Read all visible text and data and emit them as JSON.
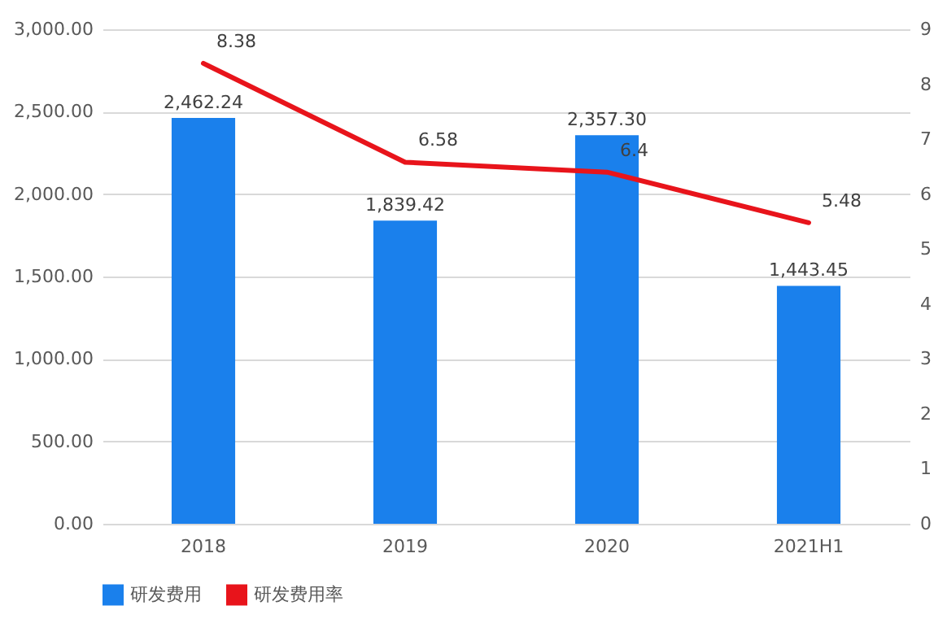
{
  "chart_data": {
    "type": "bar",
    "categories": [
      "2018",
      "2019",
      "2020",
      "2021H1"
    ],
    "series": [
      {
        "name": "研发费用",
        "color": "#1a80ec",
        "values": [
          2462.24,
          1839.42,
          2357.3,
          1443.45
        ],
        "value_labels": [
          "2,462.24",
          "1,839.42",
          "2,357.30",
          "1,443.45"
        ]
      },
      {
        "name": "研发费用率",
        "type": "line",
        "axis": "y2",
        "color": "#e8141b",
        "values": [
          8.38,
          6.58,
          6.4,
          5.48
        ],
        "value_labels": [
          "8.38",
          "6.58",
          "6.4",
          "5.48"
        ]
      }
    ],
    "ylim": [
      0,
      3000
    ],
    "yticks": [
      {
        "value": 0,
        "label": "0.00"
      },
      {
        "value": 500,
        "label": "500.00"
      },
      {
        "value": 1000,
        "label": "1,000.00"
      },
      {
        "value": 1500,
        "label": "1,500.00"
      },
      {
        "value": 2000,
        "label": "2,000.00"
      },
      {
        "value": 2500,
        "label": "2,500.00"
      },
      {
        "value": 3000,
        "label": "3,000.00"
      }
    ],
    "y2lim": [
      0,
      9
    ],
    "y2ticks": [
      0,
      1,
      2,
      3,
      4,
      5,
      6,
      7,
      8,
      9
    ],
    "grid": "y",
    "legend": "bottom",
    "line_style": "solid"
  }
}
